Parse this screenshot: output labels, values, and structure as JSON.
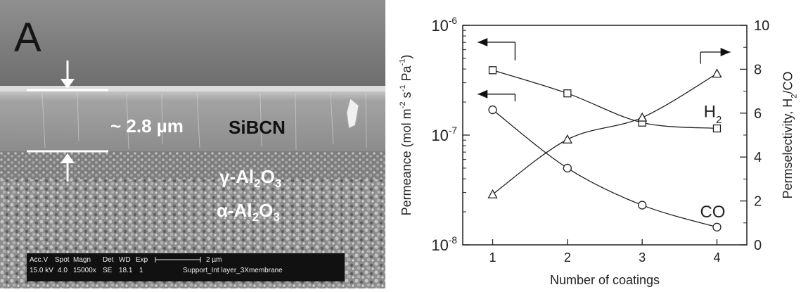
{
  "sem_panel": {
    "panel_letter": "A",
    "thickness_label": "~ 2.8 µm",
    "layers": [
      "SiBCN",
      "γ-Al",
      "α-Al"
    ],
    "layer_sub": [
      "2",
      "3"
    ],
    "databar": {
      "headers": [
        "Acc.V",
        "Spot",
        "Magn",
        "Det",
        "WD",
        "Exp"
      ],
      "values": [
        "15.0 kV",
        "4.0",
        "15000x",
        "SE",
        "18.1",
        "1"
      ],
      "scale_label": "2 µm",
      "sample": "Support_Int layer_3Xmembrane"
    }
  },
  "chart_data": {
    "type": "line",
    "xlabel": "Number of coatings",
    "x": [
      1,
      2,
      3,
      4
    ],
    "xticks": [
      "1",
      "2",
      "3",
      "4"
    ],
    "xlim": [
      0.6,
      4.4
    ],
    "left_axis": {
      "label_parts": [
        "Permeance (mol m",
        "-2",
        " s",
        "-1",
        " Pa",
        "-1",
        ")"
      ],
      "scale": "log",
      "lim": [
        1e-08,
        1e-06
      ],
      "tick_base": "10",
      "tick_exps": [
        "-8",
        "-7",
        "-6"
      ]
    },
    "right_axis": {
      "label_parts": [
        "Permselectivity, H",
        "2",
        "/CO"
      ],
      "scale": "linear",
      "lim": [
        0,
        10
      ],
      "ticks": [
        "0",
        "2",
        "4",
        "6",
        "8",
        "10"
      ]
    },
    "series": [
      {
        "name": "H",
        "name_sub": "2",
        "axis": "left",
        "marker": "square",
        "values": [
          3.9e-07,
          2.4e-07,
          1.3e-07,
          1.15e-07
        ]
      },
      {
        "name": "CO",
        "axis": "left",
        "marker": "circle",
        "values": [
          1.7e-07,
          5e-08,
          2.3e-08,
          1.45e-08
        ]
      },
      {
        "axis": "right",
        "marker": "triangle",
        "values": [
          2.3,
          4.8,
          5.8,
          7.8
        ]
      }
    ],
    "grid": false
  }
}
